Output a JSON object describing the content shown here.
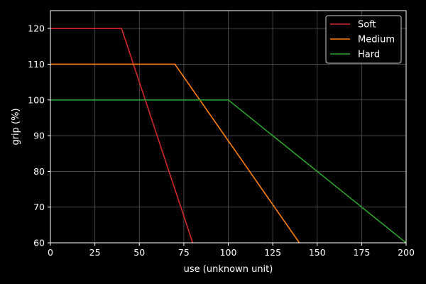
{
  "chart_data": {
    "type": "line",
    "title": "",
    "xlabel": "use (unknown unit)",
    "ylabel": "grip (%)",
    "xlim": [
      0,
      200
    ],
    "ylim": [
      60,
      125
    ],
    "xticks": [
      0,
      25,
      50,
      75,
      100,
      125,
      150,
      175,
      200
    ],
    "yticks": [
      60,
      70,
      80,
      90,
      100,
      110,
      120
    ],
    "grid": true,
    "legend_position": "top-right",
    "series": [
      {
        "name": "Soft",
        "color": "#d62728",
        "points": [
          [
            0,
            120
          ],
          [
            40,
            120
          ],
          [
            80,
            60
          ]
        ]
      },
      {
        "name": "Medium",
        "color": "#ff7f0e",
        "points": [
          [
            0,
            110
          ],
          [
            70,
            110
          ],
          [
            140,
            60
          ]
        ]
      },
      {
        "name": "Hard",
        "color": "#2ca02c",
        "points": [
          [
            0,
            100
          ],
          [
            100,
            100
          ],
          [
            200,
            60
          ]
        ]
      }
    ]
  },
  "colors": {
    "background": "#000000",
    "foreground": "#ffffff",
    "grid": "#555555"
  }
}
